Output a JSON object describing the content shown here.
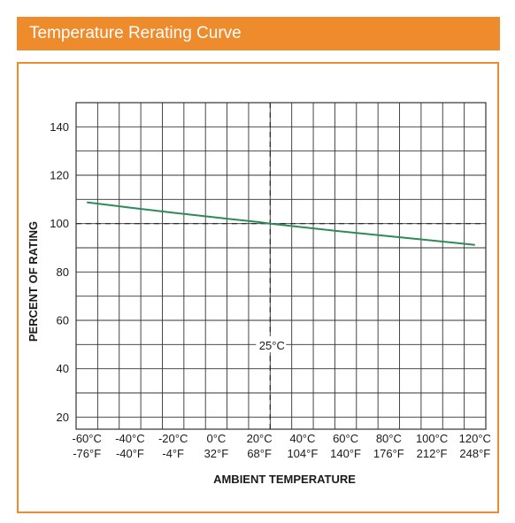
{
  "title": "Temperature Rerating Curve",
  "colors": {
    "accent": "#ee8b2c",
    "curve": "#2e8b57",
    "grid": "#333333"
  },
  "chart_data": {
    "type": "line",
    "xlabel": "AMBIENT TEMPERATURE",
    "ylabel": "PERCENT OF RATING",
    "xlim": [
      -65,
      125
    ],
    "ylim": [
      15,
      150
    ],
    "x_ticks": [
      -60,
      -40,
      -20,
      0,
      20,
      40,
      60,
      80,
      100,
      120
    ],
    "x_tick_labels_c": [
      "-60°C",
      "-40°C",
      "-20°C",
      "0°C",
      "20°C",
      "40°C",
      "60°C",
      "80°C",
      "100°C",
      "120°C"
    ],
    "x_tick_labels_f": [
      "-76°F",
      "-40°F",
      "-4°F",
      "32°F",
      "68°F",
      "104°F",
      "140°F",
      "176°F",
      "212°F",
      "248°F"
    ],
    "y_ticks": [
      20,
      40,
      60,
      80,
      100,
      120,
      140
    ],
    "y_tick_labels": [
      "20",
      "40",
      "60",
      "80",
      "100",
      "120",
      "140"
    ],
    "grid": true,
    "series": [
      {
        "x": [
          -60,
          -40,
          -20,
          0,
          20,
          25,
          40,
          60,
          80,
          100,
          120
        ],
        "y": [
          108.8,
          106.6,
          104.5,
          102.5,
          100.6,
          100,
          98.5,
          96.6,
          94.8,
          93.0,
          91.2
        ]
      }
    ],
    "annotations": [
      {
        "text": "25°C",
        "x": 25,
        "y": 100
      }
    ]
  }
}
